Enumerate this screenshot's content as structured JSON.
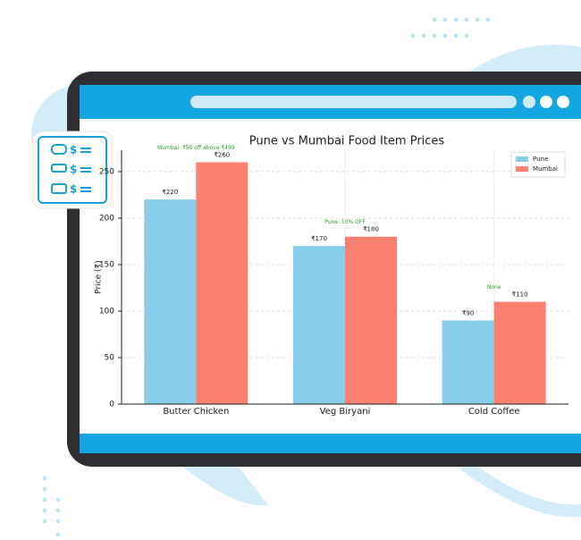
{
  "chart_data": {
    "type": "bar",
    "title": "Pune vs Mumbai Food Item Prices",
    "y_label": "Price (₹)",
    "categories": [
      "Butter Chicken",
      "Veg Biryani",
      "Cold Coffee"
    ],
    "series": [
      {
        "name": "Pune",
        "color": "#87ceeb",
        "values": [
          220,
          170,
          90
        ],
        "value_labels": [
          "₹220",
          "₹170",
          "₹90"
        ]
      },
      {
        "name": "Mumbai",
        "color": "#fa8072",
        "values": [
          260,
          180,
          110
        ],
        "value_labels": [
          "₹260",
          "₹180",
          "₹110"
        ]
      }
    ],
    "annotations": [
      "Mumbai: ₹50 off above ₹499",
      "Pune: 10% OFF",
      "None"
    ],
    "ylim": [
      0,
      273
    ],
    "yticks": [
      0,
      50,
      100,
      150,
      200,
      250
    ],
    "grid": true,
    "legend": "upper right"
  }
}
